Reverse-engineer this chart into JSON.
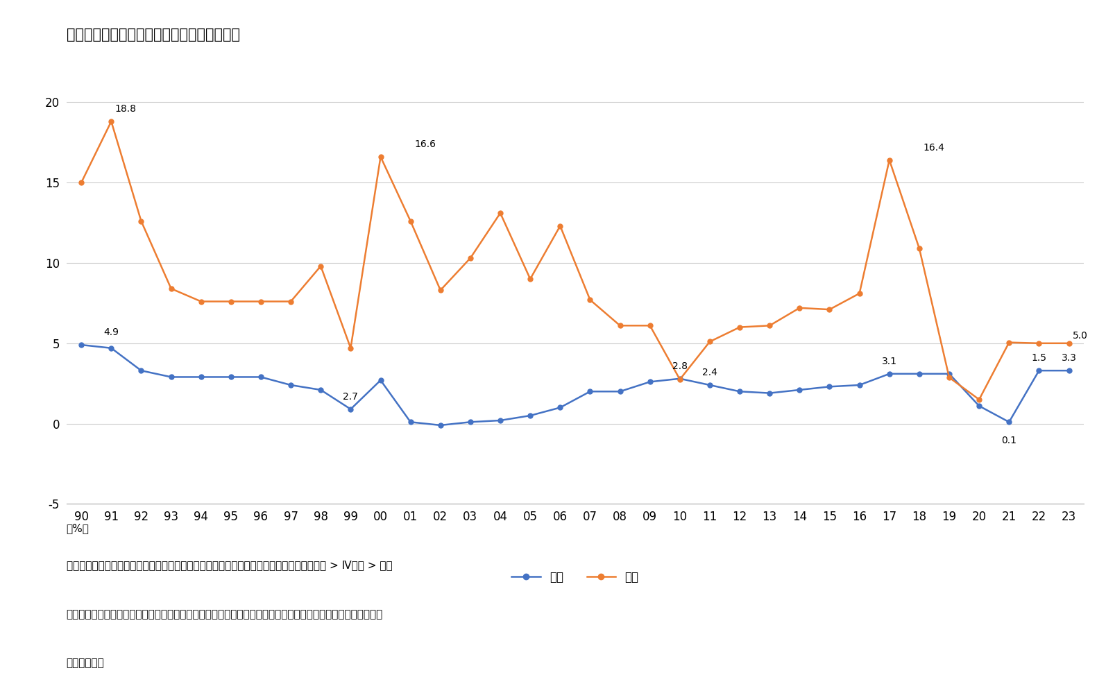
{
  "title": "日韓における最低賃金の対前年比引き上げ率",
  "years": [
    "90",
    "91",
    "92",
    "93",
    "94",
    "95",
    "96",
    "97",
    "98",
    "99",
    "00",
    "01",
    "02",
    "03",
    "04",
    "05",
    "06",
    "07",
    "08",
    "09",
    "10",
    "11",
    "12",
    "13",
    "14",
    "15",
    "16",
    "17",
    "18",
    "19",
    "20",
    "21",
    "22",
    "23"
  ],
  "japan": [
    4.9,
    4.7,
    3.3,
    2.9,
    2.9,
    2.9,
    2.9,
    2.4,
    2.1,
    0.9,
    2.7,
    0.1,
    -0.1,
    0.1,
    0.2,
    0.5,
    1.0,
    2.0,
    2.0,
    2.6,
    2.8,
    2.4,
    2.0,
    1.9,
    2.1,
    2.3,
    2.4,
    3.1,
    3.1,
    3.1,
    1.1,
    0.1,
    3.3,
    3.3
  ],
  "korea": [
    15.0,
    18.8,
    12.6,
    8.4,
    7.6,
    7.6,
    7.6,
    7.6,
    9.8,
    4.7,
    16.6,
    12.6,
    8.3,
    10.3,
    13.1,
    9.0,
    12.3,
    7.7,
    6.1,
    6.1,
    2.75,
    5.1,
    6.0,
    6.1,
    7.2,
    7.1,
    8.1,
    16.4,
    10.9,
    2.87,
    1.5,
    5.05,
    5.0,
    5.0
  ],
  "ylim": [
    -5,
    22
  ],
  "yticks": [
    -5,
    0,
    5,
    10,
    15,
    20
  ],
  "japan_color": "#4472C4",
  "korea_color": "#ED7D31",
  "source_line1": "出所）日本：独立行政法人労働政策研究・研修機構「早わかり　グラフでみる長期労働統計 > Ⅳ賃金 > 図３",
  "source_line2": "最低賃金」、厚生労働省「地域別最低賃金改定状況」各年、韓国：最低賃金委員会「年度別最低賃金決定現況」",
  "source_line3": "より筆者作成",
  "legend_japan": "日本",
  "legend_korea": "韓国",
  "pct_label": "（%）",
  "background_color": "#FFFFFF"
}
